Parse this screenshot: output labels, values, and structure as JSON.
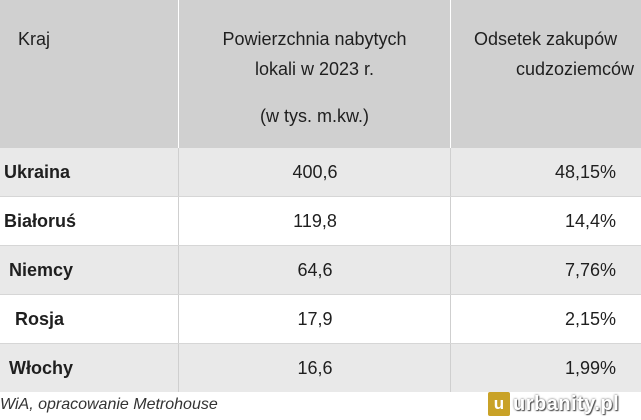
{
  "table": {
    "headers": {
      "country": "Kraj",
      "area_line1": "Powierzchnia nabytych",
      "area_line2": "lokali w 2023 r.",
      "area_unit": "(w tys. m.kw.)",
      "share_line1": "Odsetek zakupów",
      "share_line2": "cudzoziemców"
    },
    "rows": [
      {
        "country": "Ukraina",
        "area": "400,6",
        "share": "48,15%"
      },
      {
        "country": "Białoruś",
        "area": "119,8",
        "share": "14,4%"
      },
      {
        "country": "Niemcy",
        "area": "64,6",
        "share": "7,76%"
      },
      {
        "country": "Rosja",
        "area": "17,9",
        "share": "2,15%"
      },
      {
        "country": "Włochy",
        "area": "16,6",
        "share": "1,99%"
      }
    ]
  },
  "footer": {
    "source": "WiA, opracowanie Metrohouse"
  },
  "watermark": {
    "badge": "u",
    "text": "urbanity.pl",
    "badge_color": "#c9a227"
  },
  "colors": {
    "header_bg": "#d0d0d0",
    "odd_row_bg": "#e9e9e9"
  }
}
